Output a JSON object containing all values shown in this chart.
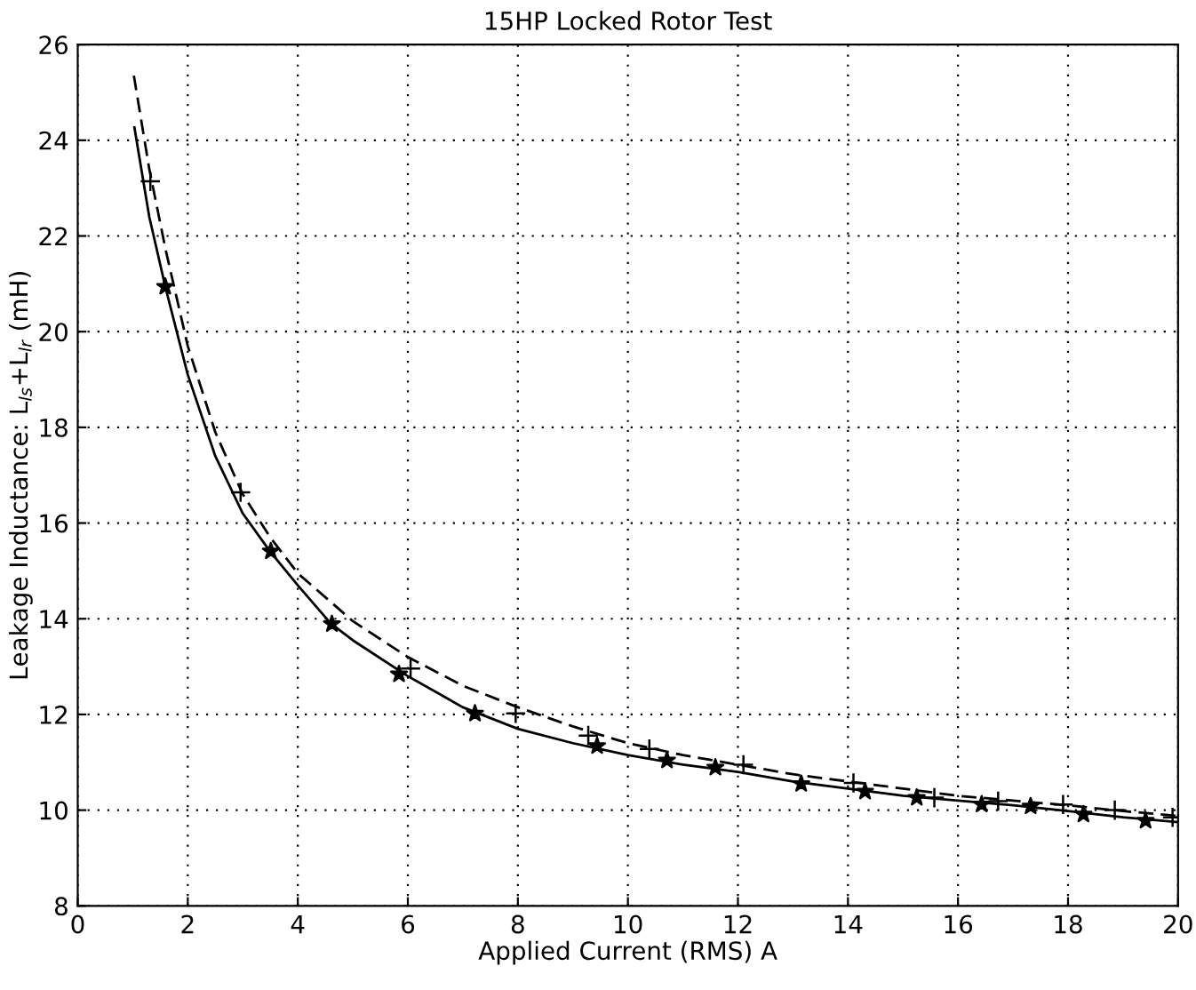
{
  "chart_data": {
    "type": "line",
    "title": "15HP Locked Rotor Test",
    "xlabel": "Applied Current (RMS) A",
    "ylabel": "Leakage Inductance: L$_{ls}$+L$_{lr}$ (mH)",
    "xlim": [
      0,
      20
    ],
    "ylim": [
      8,
      26
    ],
    "xticks": [
      0,
      2,
      4,
      6,
      8,
      10,
      12,
      14,
      16,
      18,
      20
    ],
    "yticks": [
      8,
      10,
      12,
      14,
      16,
      18,
      20,
      22,
      24,
      26
    ],
    "grid": true,
    "legend": false,
    "series": [
      {
        "type": "scatter",
        "marker": "cross",
        "color": "#000000",
        "x": [
          1.32,
          2.96,
          6.05,
          7.96,
          9.28,
          10.39,
          12.1,
          14.1,
          15.57,
          16.73,
          17.91,
          18.85,
          19.9
        ],
        "values": [
          23.14,
          16.64,
          12.96,
          12.02,
          11.56,
          11.28,
          10.95,
          10.57,
          10.26,
          10.19,
          10.12,
          10.0,
          9.85
        ]
      },
      {
        "type": "scatter",
        "marker": "star",
        "color": "#000000",
        "x": [
          1.59,
          3.51,
          4.62,
          5.84,
          7.22,
          9.44,
          10.71,
          11.59,
          13.15,
          14.31,
          15.25,
          16.43,
          17.32,
          18.28,
          19.41
        ],
        "values": [
          20.94,
          15.41,
          13.89,
          12.84,
          12.02,
          11.34,
          11.04,
          10.89,
          10.55,
          10.39,
          10.26,
          10.12,
          10.08,
          9.91,
          9.78
        ]
      },
      {
        "line_style": "dashed",
        "color": "#000000",
        "x": [
          1.02,
          1.3,
          1.6,
          2,
          2.5,
          3,
          3.5,
          4,
          5,
          6,
          7,
          8,
          9,
          10,
          11,
          12,
          13,
          14,
          15,
          16,
          17,
          18,
          19,
          20
        ],
        "values": [
          25.35,
          23.4,
          21.7,
          19.7,
          17.9,
          16.6,
          15.7,
          14.95,
          13.95,
          13.2,
          12.6,
          12.15,
          11.75,
          11.4,
          11.15,
          10.95,
          10.75,
          10.6,
          10.45,
          10.3,
          10.2,
          10.1,
          9.98,
          9.88
        ]
      },
      {
        "line_style": "solid",
        "color": "#000000",
        "x": [
          1.03,
          1.3,
          1.6,
          2,
          2.5,
          3,
          3.5,
          4,
          4.6,
          5,
          6,
          7,
          8,
          9,
          10,
          11,
          12,
          13,
          14,
          15,
          16,
          17,
          18,
          19,
          20
        ],
        "values": [
          24.27,
          22.4,
          20.9,
          19.1,
          17.4,
          16.2,
          15.4,
          14.7,
          13.9,
          13.55,
          12.8,
          12.15,
          11.7,
          11.4,
          11.15,
          10.95,
          10.8,
          10.6,
          10.45,
          10.3,
          10.2,
          10.1,
          9.98,
          9.85,
          9.75
        ]
      }
    ]
  }
}
